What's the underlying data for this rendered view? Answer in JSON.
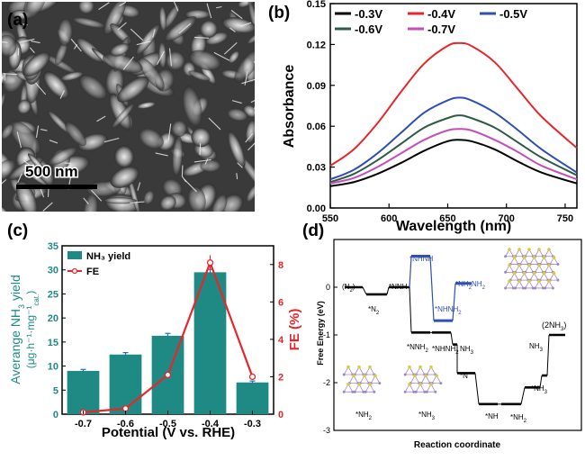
{
  "panels": {
    "a": {
      "label": "(a)",
      "scale_bar": "500 nm"
    },
    "b": {
      "label": "(b)"
    },
    "c": {
      "label": "(c)"
    },
    "d": {
      "label": "(d)"
    }
  },
  "colors": {
    "teal": "#1f8a84",
    "red": "#e8262a",
    "blue": "#2f4fb5",
    "green": "#2e5b45",
    "magenta": "#c24fb9",
    "black": "#000000"
  },
  "chart_data": [
    {
      "panel": "b",
      "type": "line",
      "xlabel": "Wavelength (nm)",
      "ylabel": "Absorbance",
      "xlim": [
        550,
        760
      ],
      "ylim": [
        0.0,
        0.15
      ],
      "xticks": [
        550,
        600,
        650,
        700,
        750
      ],
      "xtick_labels": [
        "550",
        "600",
        "650",
        "700",
        "750"
      ],
      "yticks": [
        0.0,
        0.03,
        0.06,
        0.09,
        0.12,
        0.15
      ],
      "ytick_labels": [
        "0.00",
        "0.03",
        "0.06",
        "0.09",
        "0.12",
        "0.15"
      ],
      "legend_position": "top",
      "series": [
        {
          "name": "-0.3V",
          "color": "#000000",
          "x": [
            550,
            570,
            590,
            610,
            630,
            650,
            660,
            670,
            690,
            710,
            730,
            760
          ],
          "values": [
            0.016,
            0.019,
            0.025,
            0.033,
            0.042,
            0.049,
            0.05,
            0.049,
            0.043,
            0.034,
            0.026,
            0.018
          ]
        },
        {
          "name": "-0.4V",
          "color": "#e8262a",
          "x": [
            550,
            570,
            590,
            610,
            630,
            650,
            660,
            670,
            690,
            710,
            730,
            760
          ],
          "values": [
            0.031,
            0.043,
            0.062,
            0.085,
            0.106,
            0.119,
            0.121,
            0.119,
            0.107,
            0.087,
            0.067,
            0.044
          ]
        },
        {
          "name": "-0.5V",
          "color": "#2f4fb5",
          "x": [
            550,
            570,
            590,
            610,
            630,
            650,
            660,
            670,
            690,
            710,
            730,
            760
          ],
          "values": [
            0.021,
            0.028,
            0.04,
            0.055,
            0.07,
            0.079,
            0.081,
            0.079,
            0.07,
            0.057,
            0.043,
            0.026
          ]
        },
        {
          "name": "-0.6V",
          "color": "#2e5b45",
          "x": [
            550,
            570,
            590,
            610,
            630,
            650,
            660,
            670,
            690,
            710,
            730,
            760
          ],
          "values": [
            0.019,
            0.025,
            0.035,
            0.047,
            0.059,
            0.066,
            0.068,
            0.066,
            0.059,
            0.048,
            0.037,
            0.024
          ]
        },
        {
          "name": "-0.7V",
          "color": "#c24fb9",
          "x": [
            550,
            570,
            590,
            610,
            630,
            650,
            660,
            670,
            690,
            710,
            730,
            760
          ],
          "values": [
            0.018,
            0.022,
            0.03,
            0.04,
            0.05,
            0.057,
            0.058,
            0.057,
            0.05,
            0.041,
            0.031,
            0.021
          ]
        }
      ]
    },
    {
      "panel": "c",
      "type": "bar",
      "categories": [
        "-0.7",
        "-0.6",
        "-0.5",
        "-0.4",
        "-0.3"
      ],
      "xlabel": "Potential (V vs. RHE)",
      "ylabel_left_line1": "Averange NH",
      "ylabel_left_sub": "3",
      "ylabel_left_line1_end": " yield",
      "ylabel_left_line2": "(μg·h⁻¹·mg⁻¹",
      "ylabel_left_line2_sub": "cat.",
      "ylabel_left_line2_end": ")",
      "ylabel_right": "FE (%)",
      "ylim": [
        0,
        35
      ],
      "yticks": [
        0,
        5,
        10,
        15,
        20,
        25,
        30,
        35
      ],
      "ylim_right": [
        0,
        9
      ],
      "yticks_right": [
        0,
        2,
        4,
        6,
        8
      ],
      "series": [
        {
          "name": "NH₃ yield",
          "color": "#1f8a84",
          "values": [
            9.0,
            12.4,
            16.3,
            29.5,
            6.6
          ],
          "errors": [
            0.3,
            0.4,
            0.5,
            0.6,
            0.3
          ]
        },
        {
          "name": "FE",
          "color": "#e8262a",
          "axis": "right",
          "values": [
            0.1,
            0.3,
            2.1,
            8.1,
            2.0
          ],
          "errors": [
            0.05,
            0.08,
            0.15,
            0.4,
            0.1
          ]
        }
      ],
      "legend_position": "top-left"
    },
    {
      "panel": "d",
      "type": "line",
      "xlabel": "Reaction coordinate",
      "ylabel": "Free Energy (eV)",
      "ylim": [
        -3,
        1
      ],
      "yticks": [
        -3,
        -2,
        -1,
        0
      ],
      "yticks_labels": [
        "-3",
        "-2",
        "-1",
        "0"
      ],
      "series": [
        {
          "name": "black-pathway",
          "color": "#000000",
          "steps": [
            "(N₂)",
            "*N₂",
            "*NNH",
            "*NNH₂",
            "*NHNH₂",
            "NH₃",
            "*N",
            "*NH",
            "*NH₂",
            "NH₃",
            "*NH₃",
            "(2NH₃)"
          ],
          "values": [
            0.0,
            -0.15,
            0.0,
            -0.95,
            -0.95,
            -1.2,
            -1.8,
            -2.45,
            -2.45,
            -2.1,
            -1.85,
            -1.0
          ]
        },
        {
          "name": "blue-pathway",
          "color": "#2f4fb5",
          "steps": [
            "*NHNH",
            "*NHNH₂",
            "*NH₂NH₂"
          ],
          "values": [
            0.65,
            -0.7,
            0.08
          ]
        }
      ],
      "labels": {
        "n2": "(N",
        "n2_sub": "2",
        "n2_end": ")",
        "star_n2": "*N",
        "star_n2_sub": "2",
        "star_nnh": "*NNH",
        "star_nnh2": "*NNH",
        "star_nnh2_sub": "2",
        "star_nhnh2": "*NHNH",
        "star_nhnh2_sub": "2",
        "nh3_a": "NH",
        "nh3_a_sub": "3",
        "star_n": "*N",
        "star_nh": "*NH",
        "star_nh2": "*NH",
        "star_nh2_sub": "2",
        "nh3_b": "NH",
        "nh3_b_sub": "3",
        "star_nh3": "*NH",
        "star_nh3_sub": "3",
        "two_nh3": "(2NH",
        "two_nh3_sub": "3",
        "two_nh3_end": ")",
        "blue_nhnh": "*NHNH",
        "blue_nhnh2": "*NHNH",
        "blue_nhnh2_sub": "2",
        "blue_nh2nh2": "*NH",
        "blue_nh2nh2_sub": "2",
        "blue_nh2nh2_mid": "NH",
        "blue_nh2nh2_end": "2",
        "struct_left": "*NH",
        "struct_left_sub": "2",
        "struct_mid": "*NH",
        "struct_mid_sub": "3"
      }
    }
  ]
}
